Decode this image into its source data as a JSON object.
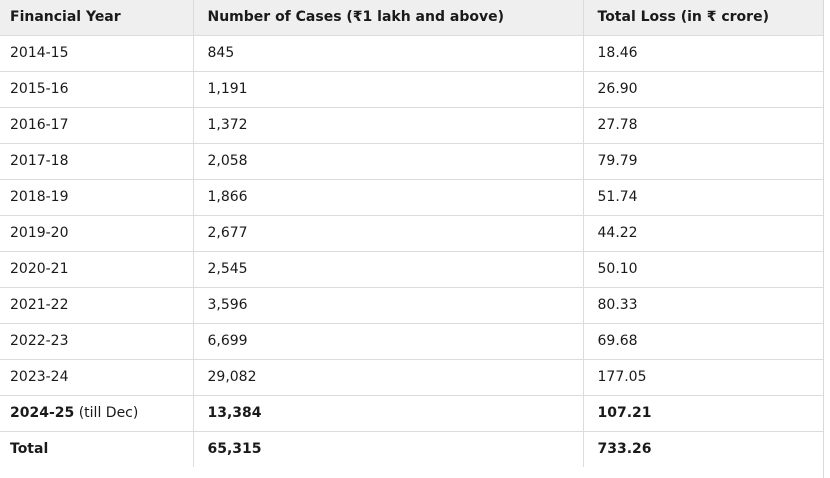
{
  "table": {
    "headers": [
      "Financial Year",
      "Number of Cases (₹1 lakh and above)",
      "Total Loss (in ₹ crore)"
    ],
    "rows": [
      {
        "year": "2014-15",
        "cases": "845",
        "loss": "18.46"
      },
      {
        "year": "2015-16",
        "cases": "1,191",
        "loss": "26.90"
      },
      {
        "year": "2016-17",
        "cases": "1,372",
        "loss": "27.78"
      },
      {
        "year": "2017-18",
        "cases": "2,058",
        "loss": "79.79"
      },
      {
        "year": "2018-19",
        "cases": "1,866",
        "loss": "51.74"
      },
      {
        "year": "2019-20",
        "cases": "2,677",
        "loss": "44.22"
      },
      {
        "year": "2020-21",
        "cases": "2,545",
        "loss": "50.10"
      },
      {
        "year": "2021-22",
        "cases": "3,596",
        "loss": "80.33"
      },
      {
        "year": "2022-23",
        "cases": "6,699",
        "loss": "69.68"
      },
      {
        "year": "2023-24",
        "cases": "29,082",
        "loss": "177.05"
      }
    ],
    "highlight_row": {
      "year": "2024-25",
      "year_note": " (till Dec)",
      "cases": "13,384",
      "loss": "107.21"
    },
    "total_row": {
      "label": "Total",
      "cases": "65,315",
      "loss": "733.26"
    }
  }
}
